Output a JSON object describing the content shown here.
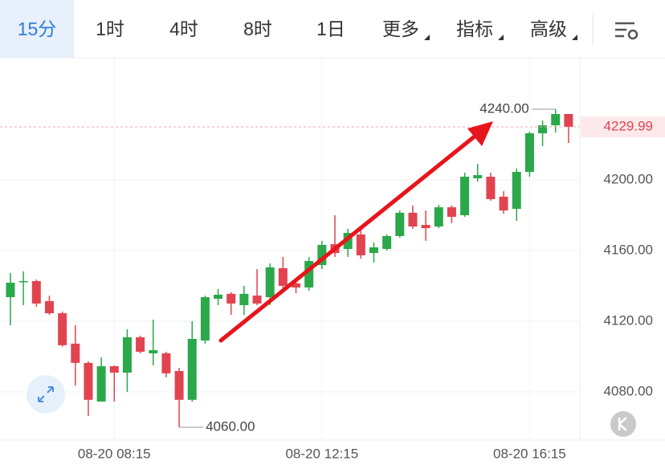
{
  "toolbar": {
    "tabs": [
      "15分",
      "1时",
      "4时",
      "8时",
      "1日",
      "更多",
      "指标",
      "高级"
    ]
  },
  "chart_data": {
    "type": "candlestick",
    "categories": [
      null,
      null,
      null,
      null,
      null,
      null,
      null,
      null,
      "08-20 08:15",
      null,
      null,
      null,
      null,
      null,
      null,
      null,
      null,
      null,
      null,
      null,
      null,
      null,
      null,
      null,
      "08-20 12:15",
      null,
      null,
      null,
      null,
      null,
      null,
      null,
      null,
      null,
      null,
      null,
      null,
      null,
      null,
      null,
      "08-20 16:15",
      null,
      null,
      null
    ],
    "open": [
      4133.6,
      4142.3,
      4142.7,
      4131.4,
      4124.5,
      4107.3,
      4096.4,
      4074.5,
      4094.5,
      4090.9,
      4110.9,
      4101.8,
      4101.8,
      4091.8,
      4075.5,
      4109.1,
      4132.7,
      4135.5,
      4129.1,
      4134.5,
      4133.6,
      4150.0,
      4141.4,
      4139.1,
      4151.8,
      4163.6,
      4160.9,
      4169.1,
      4158.6,
      4160.9,
      4168.2,
      4181.4,
      4174.5,
      4173.6,
      4184.5,
      4180.0,
      4200.9,
      4201.8,
      4190.5,
      4183.6,
      4204.5,
      4226.4,
      4230.9,
      4237.3
    ],
    "high": [
      4147.3,
      4148.2,
      4143.6,
      4134.5,
      4125.5,
      4117.7,
      4097.3,
      4099.5,
      4095.0,
      4115.5,
      4111.8,
      4120.9,
      4102.7,
      4093.6,
      4120.0,
      4134.5,
      4138.2,
      4136.4,
      4140.0,
      4149.5,
      4152.7,
      4156.4,
      4142.7,
      4156.4,
      4165.5,
      4180.0,
      4172.3,
      4172.3,
      4164.5,
      4169.1,
      4182.7,
      4185.5,
      4182.7,
      4185.9,
      4185.5,
      4204.1,
      4209.1,
      4204.1,
      4193.6,
      4206.4,
      4227.3,
      4233.6,
      4240.0,
      4237.3
    ],
    "low": [
      4117.7,
      4129.1,
      4128.2,
      4123.6,
      4105.5,
      4083.6,
      4066.4,
      4074.5,
      4074.5,
      4080.0,
      4101.8,
      4095.0,
      4088.2,
      4060.0,
      4074.5,
      4107.3,
      4129.1,
      4123.6,
      4123.6,
      4129.1,
      4129.1,
      4137.3,
      4135.9,
      4137.3,
      4149.5,
      4156.4,
      4156.4,
      4155.5,
      4153.2,
      4160.0,
      4167.3,
      4172.3,
      4165.5,
      4172.7,
      4175.5,
      4179.1,
      4199.1,
      4188.2,
      4180.9,
      4176.8,
      4201.8,
      4219.1,
      4226.8,
      4220.9
    ],
    "close": [
      4141.8,
      4142.7,
      4130.0,
      4124.5,
      4106.4,
      4096.4,
      4075.5,
      4094.5,
      4090.9,
      4110.9,
      4102.7,
      4103.6,
      4090.5,
      4075.5,
      4110.0,
      4133.6,
      4135.0,
      4130.0,
      4135.5,
      4130.0,
      4150.5,
      4140.0,
      4139.1,
      4154.1,
      4163.2,
      4158.6,
      4170.0,
      4157.3,
      4161.8,
      4168.2,
      4181.4,
      4173.6,
      4172.7,
      4184.5,
      4179.1,
      4201.8,
      4202.7,
      4189.1,
      4182.7,
      4204.5,
      4226.4,
      4230.9,
      4237.3,
      4229.99
    ],
    "up_color": "#2ba84a",
    "down_color": "#e24350",
    "ylim": [
      4052.7,
      4269.1
    ],
    "yticks": [
      {
        "value": 4080,
        "label": "4080.00"
      },
      {
        "value": 4120,
        "label": "4120.00"
      },
      {
        "value": 4160,
        "label": "4160.00"
      },
      {
        "value": 4200,
        "label": "4200.00"
      }
    ],
    "grid": true,
    "last_price": 4229.99,
    "max_label": {
      "value": 4240,
      "label": "4240.00"
    },
    "min_label": {
      "value": 4060,
      "label": "4060.00"
    }
  }
}
